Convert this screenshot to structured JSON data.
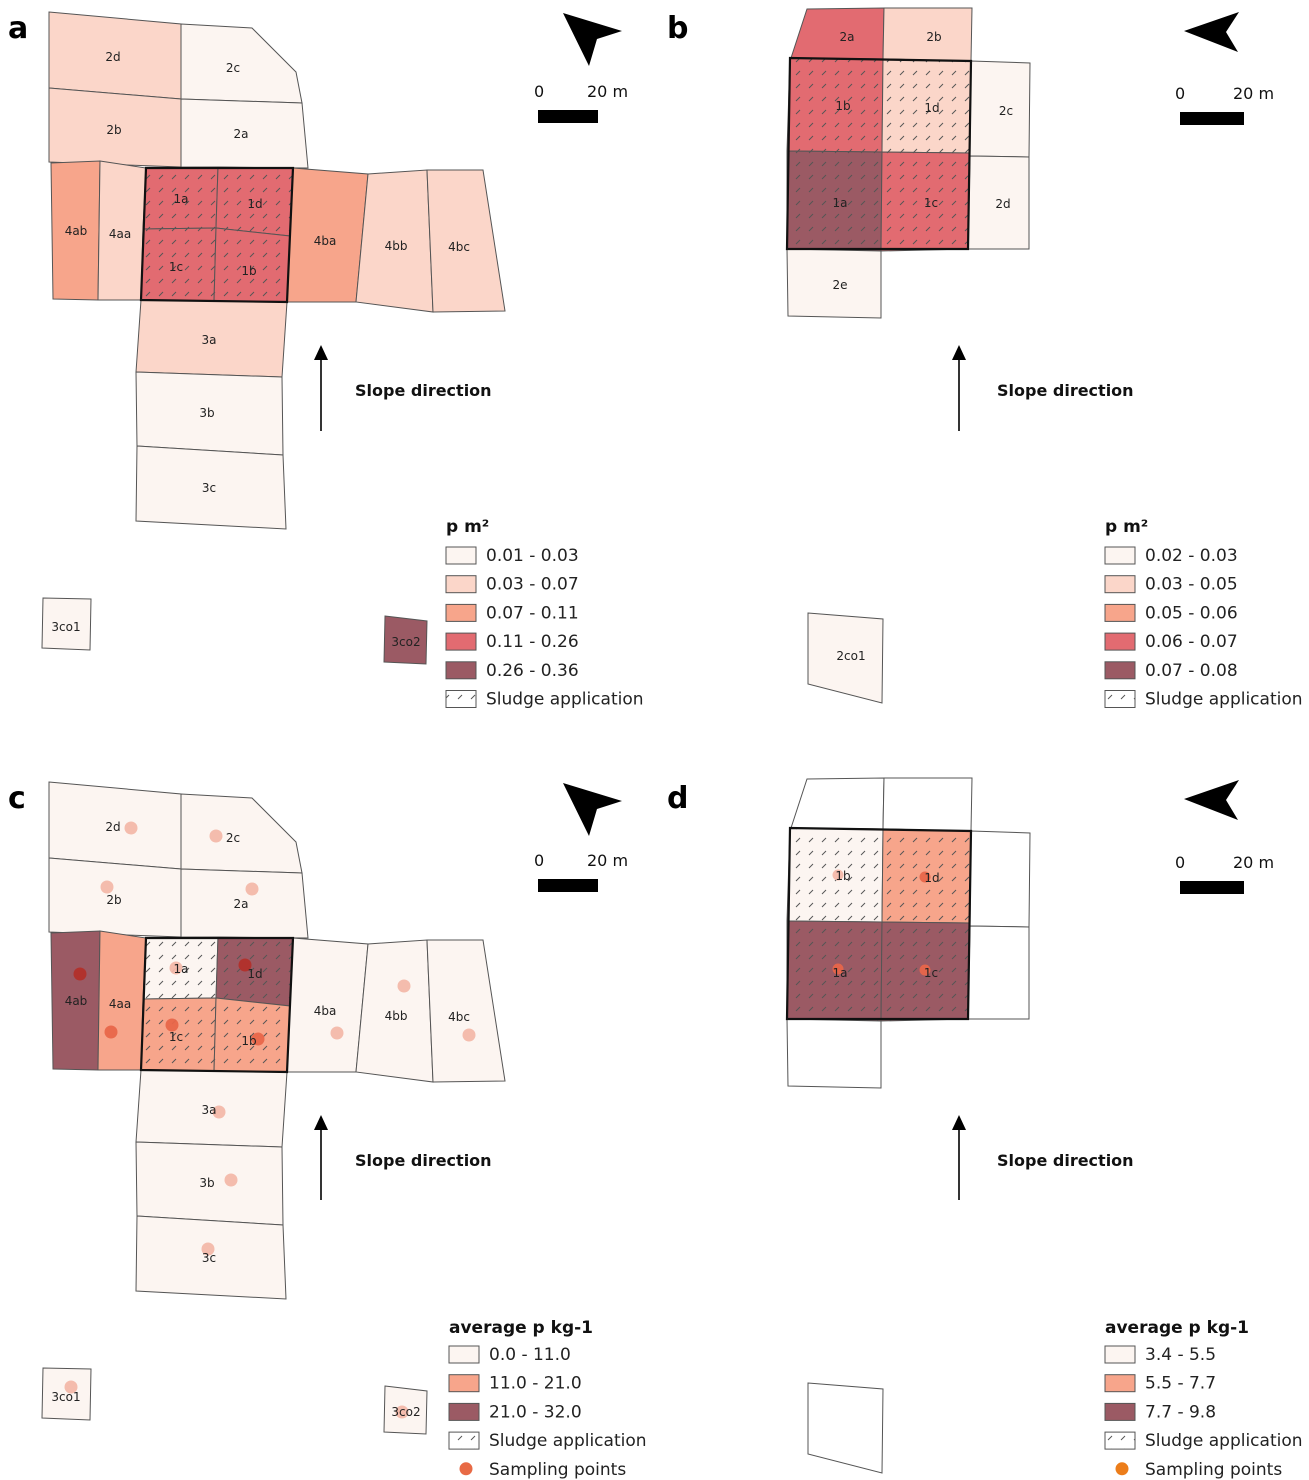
{
  "colors": {
    "c0": "#fcf5f1",
    "c1": "#fbd6c9",
    "c2": "#f7a58b",
    "c3": "#e26b71",
    "c4": "#9b5a64",
    "white": "#ffffff",
    "point_light": "#f3b8a9",
    "point_mid": "#e8664a",
    "point_dark": "#b2302a",
    "point_legend": "#e86a45"
  },
  "panels": [
    {
      "letter": "a",
      "north_icon": "north-arrow-icon",
      "scale": {
        "zero": "0",
        "end": "20 m"
      },
      "slope_label": "Slope direction",
      "legend": {
        "title": "p m²",
        "items": [
          {
            "label": "0.01 - 0.03",
            "color": "#fcf5f1"
          },
          {
            "label": "0.03 - 0.07",
            "color": "#fbd6c9"
          },
          {
            "label": "0.07 - 0.11",
            "color": "#f7a58b"
          },
          {
            "label": "0.11 - 0.26",
            "color": "#e26b71"
          },
          {
            "label": "0.26 - 0.36",
            "color": "#9b5a64"
          }
        ],
        "sludge_label": "Sludge application"
      },
      "plots": [
        {
          "id": "2d",
          "label": "2d",
          "fill": "c1"
        },
        {
          "id": "2c",
          "label": "2c",
          "fill": "c0"
        },
        {
          "id": "2b",
          "label": "2b",
          "fill": "c1"
        },
        {
          "id": "2a",
          "label": "2a",
          "fill": "c0"
        },
        {
          "id": "4ab",
          "label": "4ab",
          "fill": "c2"
        },
        {
          "id": "4aa",
          "label": "4aa",
          "fill": "c1"
        },
        {
          "id": "1a",
          "label": "1a",
          "fill": "c3",
          "sludge": true
        },
        {
          "id": "1d",
          "label": "1d",
          "fill": "c3",
          "sludge": true
        },
        {
          "id": "1c",
          "label": "1c",
          "fill": "c3",
          "sludge": true
        },
        {
          "id": "1b",
          "label": "1b",
          "fill": "c3",
          "sludge": true
        },
        {
          "id": "4ba",
          "label": "4ba",
          "fill": "c2"
        },
        {
          "id": "4bb",
          "label": "4bb",
          "fill": "c1"
        },
        {
          "id": "4bc",
          "label": "4bc",
          "fill": "c1"
        },
        {
          "id": "3a",
          "label": "3a",
          "fill": "c1"
        },
        {
          "id": "3b",
          "label": "3b",
          "fill": "c0"
        },
        {
          "id": "3c",
          "label": "3c",
          "fill": "c0"
        },
        {
          "id": "3co1",
          "label": "3co1",
          "fill": "c0"
        },
        {
          "id": "3co2",
          "label": "3co2",
          "fill": "c4"
        }
      ]
    },
    {
      "letter": "b",
      "north_icon": "north-arrow-icon",
      "scale": {
        "zero": "0",
        "end": "20 m"
      },
      "slope_label": "Slope direction",
      "legend": {
        "title": "p m²",
        "items": [
          {
            "label": "0.02 - 0.03",
            "color": "#fcf5f1"
          },
          {
            "label": "0.03 - 0.05",
            "color": "#fbd6c9"
          },
          {
            "label": "0.05 - 0.06",
            "color": "#f7a58b"
          },
          {
            "label": "0.06 - 0.07",
            "color": "#e26b71"
          },
          {
            "label": "0.07 - 0.08",
            "color": "#9b5a64"
          }
        ],
        "sludge_label": "Sludge application"
      },
      "plots": [
        {
          "id": "2a",
          "label": "2a",
          "fill": "c3"
        },
        {
          "id": "2b",
          "label": "2b",
          "fill": "c1"
        },
        {
          "id": "1b",
          "label": "1b",
          "fill": "c3",
          "sludge": true
        },
        {
          "id": "1d",
          "label": "1d",
          "fill": "c1",
          "sludge": true
        },
        {
          "id": "2c",
          "label": "2c",
          "fill": "c0"
        },
        {
          "id": "1a",
          "label": "1a",
          "fill": "c4",
          "sludge": true
        },
        {
          "id": "1c",
          "label": "1c",
          "fill": "c3",
          "sludge": true
        },
        {
          "id": "2d",
          "label": "2d",
          "fill": "c0"
        },
        {
          "id": "2e",
          "label": "2e",
          "fill": "c0"
        },
        {
          "id": "2co1",
          "label": "2co1",
          "fill": "c0"
        }
      ]
    },
    {
      "letter": "c",
      "north_icon": "north-arrow-icon",
      "scale": {
        "zero": "0",
        "end": "20 m"
      },
      "slope_label": "Slope direction",
      "legend": {
        "title": "average p kg-1",
        "items": [
          {
            "label": "0.0 - 11.0",
            "color": "#fcf5f1"
          },
          {
            "label": "11.0 - 21.0",
            "color": "#f7a58b"
          },
          {
            "label": "21.0 - 32.0",
            "color": "#9b5a64"
          }
        ],
        "sludge_label": "Sludge application",
        "points_label": "Sampling points"
      },
      "plots": [
        {
          "id": "2d",
          "label": "2d",
          "fill": "c0"
        },
        {
          "id": "2c",
          "label": "2c",
          "fill": "c0"
        },
        {
          "id": "2b",
          "label": "2b",
          "fill": "c0"
        },
        {
          "id": "2a",
          "label": "2a",
          "fill": "c0"
        },
        {
          "id": "4ab",
          "label": "4ab",
          "fill": "c4"
        },
        {
          "id": "4aa",
          "label": "4aa",
          "fill": "c2"
        },
        {
          "id": "1a",
          "label": "1a",
          "fill": "c0",
          "sludge": true
        },
        {
          "id": "1d",
          "label": "1d",
          "fill": "c4",
          "sludge": true
        },
        {
          "id": "1c",
          "label": "1c",
          "fill": "c2",
          "sludge": true
        },
        {
          "id": "1b",
          "label": "1b",
          "fill": "c2",
          "sludge": true
        },
        {
          "id": "4ba",
          "label": "4ba",
          "fill": "c0"
        },
        {
          "id": "4bb",
          "label": "4bb",
          "fill": "c0"
        },
        {
          "id": "4bc",
          "label": "4bc",
          "fill": "c0"
        },
        {
          "id": "3a",
          "label": "3a",
          "fill": "c0"
        },
        {
          "id": "3b",
          "label": "3b",
          "fill": "c0"
        },
        {
          "id": "3c",
          "label": "3c",
          "fill": "c0"
        },
        {
          "id": "3co1",
          "label": "3co1",
          "fill": "c0"
        },
        {
          "id": "3co2",
          "label": "3co2",
          "fill": "c0"
        }
      ]
    },
    {
      "letter": "d",
      "north_icon": "north-arrow-icon",
      "scale": {
        "zero": "0",
        "end": "20 m"
      },
      "slope_label": "Slope direction",
      "legend": {
        "title": "average p kg-1",
        "items": [
          {
            "label": "3.4 - 5.5",
            "color": "#fcf5f1"
          },
          {
            "label": "5.5 - 7.7",
            "color": "#f7a58b"
          },
          {
            "label": "7.7 - 9.8",
            "color": "#9b5a64"
          }
        ],
        "sludge_label": "Sludge application",
        "points_label": "Sampling points"
      },
      "plots": [
        {
          "id": "2a",
          "label": "",
          "fill": "white"
        },
        {
          "id": "2b",
          "label": "",
          "fill": "white"
        },
        {
          "id": "1b",
          "label": "1b",
          "fill": "c0",
          "sludge": true
        },
        {
          "id": "1d",
          "label": "1d",
          "fill": "c2",
          "sludge": true
        },
        {
          "id": "2c",
          "label": "",
          "fill": "white"
        },
        {
          "id": "1a",
          "label": "1a",
          "fill": "c4",
          "sludge": true
        },
        {
          "id": "1c",
          "label": "1c",
          "fill": "c4",
          "sludge": true
        },
        {
          "id": "2d",
          "label": "",
          "fill": "white"
        },
        {
          "id": "2e",
          "label": "",
          "fill": "white"
        },
        {
          "id": "2co1",
          "label": "",
          "fill": "white"
        }
      ]
    }
  ]
}
